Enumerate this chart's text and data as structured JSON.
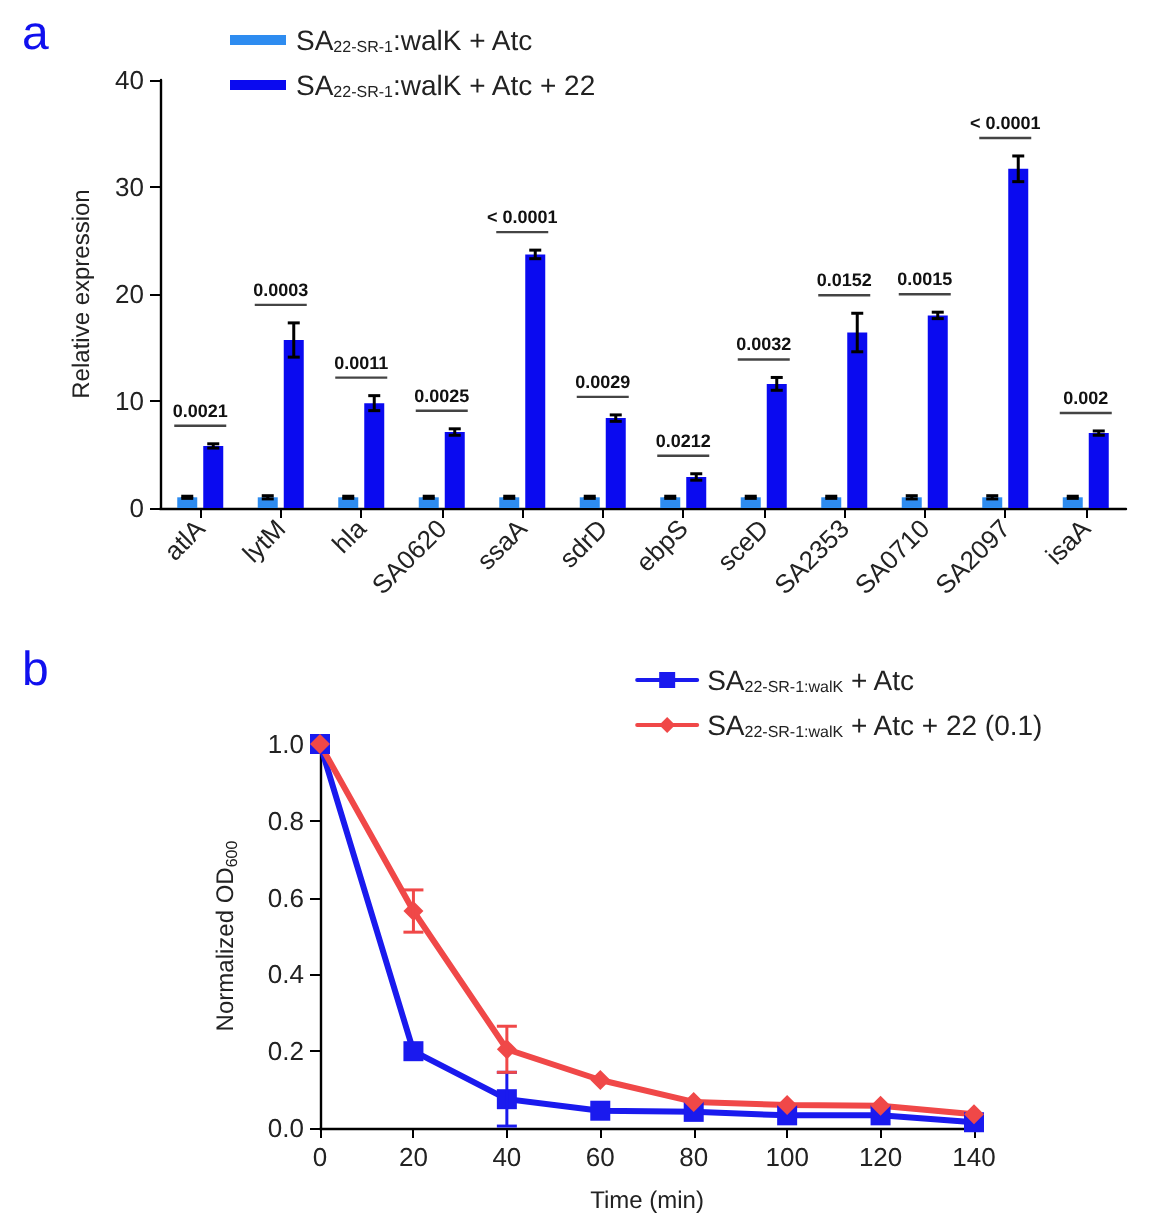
{
  "chart_data": [
    {
      "type": "bar",
      "title": "a",
      "ylabel": "Relative expression",
      "categories": [
        "atlA",
        "lytM",
        "hla",
        "SA0620",
        "ssaA",
        "sdrD",
        "ebpS",
        "sceD",
        "SA2353",
        "SA0710",
        "SA2097",
        "isaA"
      ],
      "series": [
        {
          "name": "SA$_{22-SR-1}$:walK + Atc",
          "color": "#2e8cf0",
          "values": [
            1.0,
            1.0,
            1.0,
            1.0,
            1.0,
            1.0,
            1.0,
            1.0,
            1.0,
            1.0,
            1.0,
            1.0
          ],
          "errors": [
            0.1,
            0.15,
            0.1,
            0.1,
            0.1,
            0.1,
            0.1,
            0.1,
            0.1,
            0.15,
            0.15,
            0.1
          ]
        },
        {
          "name": "SA$_{22-SR-1}$:walK + Atc + 22",
          "color": "#0a0af0",
          "values": [
            5.8,
            15.7,
            9.8,
            7.1,
            23.7,
            8.4,
            2.9,
            11.6,
            16.4,
            18.0,
            31.7,
            7.0
          ],
          "errors": [
            0.2,
            1.6,
            0.7,
            0.3,
            0.4,
            0.3,
            0.3,
            0.6,
            1.8,
            0.3,
            1.2,
            0.2
          ]
        }
      ],
      "ylim": [
        0,
        40
      ],
      "yticks": [
        0,
        10,
        20,
        30,
        40
      ],
      "grid": false,
      "legend": "top left",
      "annotations": [
        "0.0021",
        "0.0003",
        "0.0011",
        "0.0025",
        "< 0.0001",
        "0.0029",
        "0.0212",
        "0.0032",
        "0.0152",
        "0.0015",
        "< 0.0001",
        "0.002"
      ]
    },
    {
      "type": "line",
      "title": "b",
      "xlabel": "Time (min)",
      "ylabel": "Normalized OD$_{600}$",
      "x": [
        0,
        20,
        40,
        60,
        80,
        100,
        120,
        140
      ],
      "series": [
        {
          "name": "SA$_{22-SR-1:walK}$ + Atc",
          "color": "#1a1aee",
          "marker": "square",
          "values": [
            1.0,
            0.2,
            0.075,
            0.045,
            0.042,
            0.033,
            0.033,
            0.015
          ],
          "errors": [
            null,
            null,
            0.07,
            null,
            null,
            null,
            null,
            null
          ]
        },
        {
          "name": "SA$_{22-SR-1:walK}$ + Atc + 22 (0.1)",
          "color": "#f04848",
          "marker": "diamond",
          "values": [
            1.0,
            0.565,
            0.205,
            0.125,
            0.068,
            0.06,
            0.058,
            0.036
          ],
          "errors": [
            null,
            0.055,
            0.06,
            null,
            null,
            null,
            null,
            null
          ]
        }
      ],
      "xlim": [
        0,
        140
      ],
      "xticks": [
        0,
        20,
        40,
        60,
        80,
        100,
        120,
        140
      ],
      "ylim": [
        0,
        1.0
      ],
      "yticks": [
        {
          "value": 0,
          "label": "0.0"
        },
        0.2,
        0.4,
        0.6,
        0.8,
        {
          "value": 1.0,
          "label": "1.0"
        }
      ],
      "grid": false,
      "legend": "top right",
      "line_style": "solid"
    }
  ]
}
